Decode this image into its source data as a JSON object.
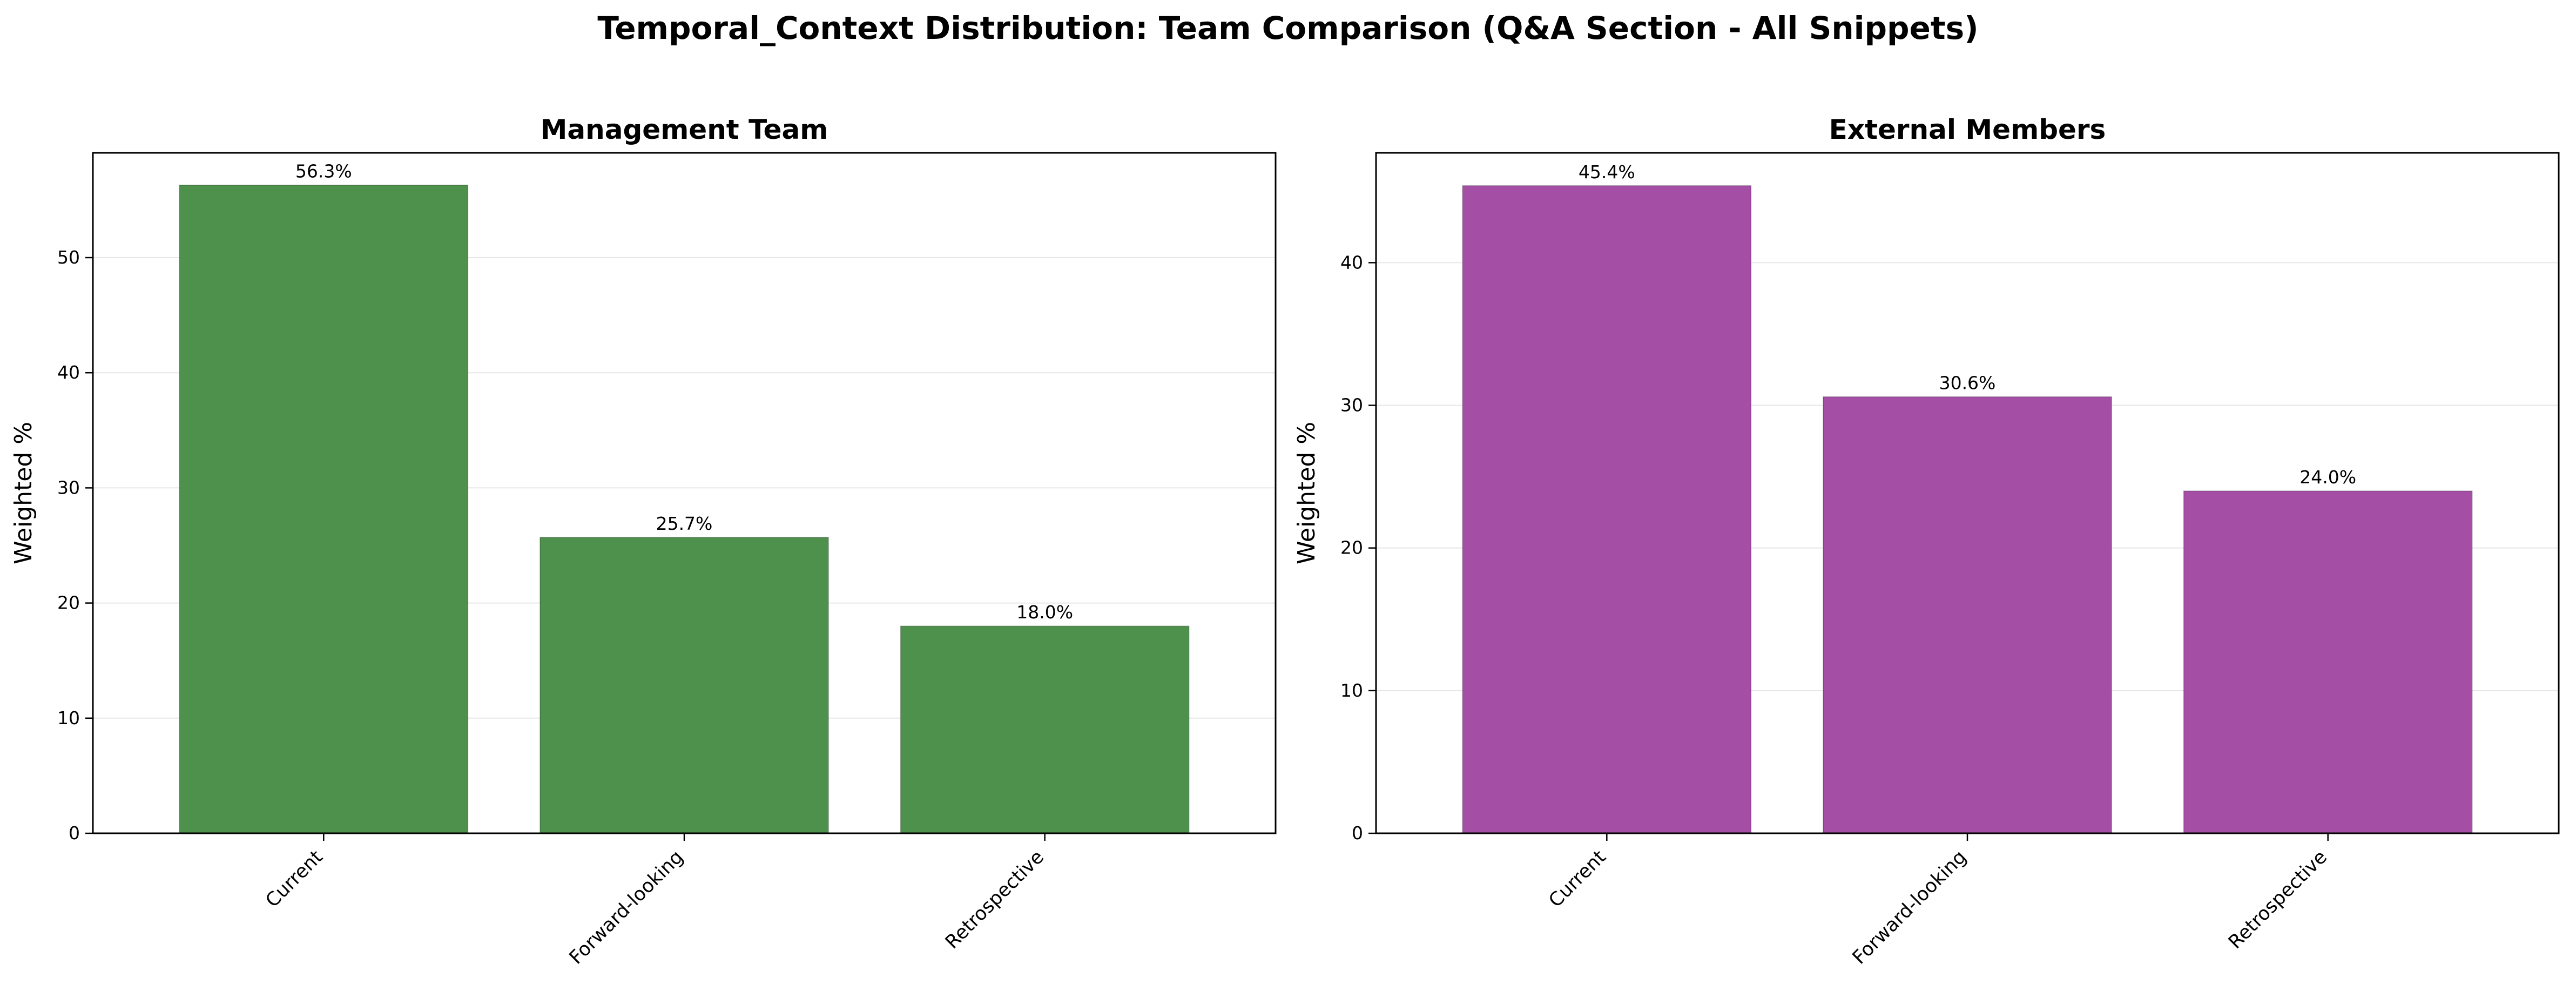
{
  "figure": {
    "title": "Temporal_Context Distribution: Team Comparison (Q&A Section - All Snippets)"
  },
  "chart_data": [
    {
      "type": "bar",
      "title": "Management Team",
      "xlabel": "",
      "ylabel": "Weighted %",
      "categories": [
        "Current",
        "Forward-looking",
        "Retrospective"
      ],
      "values": [
        56.3,
        25.7,
        18.0
      ],
      "data_labels": [
        "56.3%",
        "25.7%",
        "18.0%"
      ],
      "yticks": [
        0,
        10,
        20,
        30,
        40,
        50
      ],
      "ylim": [
        0,
        59.1
      ],
      "color": "#4d914d",
      "grid": "y"
    },
    {
      "type": "bar",
      "title": "External Members",
      "xlabel": "",
      "ylabel": "Weighted %",
      "categories": [
        "Current",
        "Forward-looking",
        "Retrospective"
      ],
      "values": [
        45.4,
        30.6,
        24.0
      ],
      "data_labels": [
        "45.4%",
        "30.6%",
        "24.0%"
      ],
      "yticks": [
        0,
        10,
        20,
        30,
        40
      ],
      "ylim": [
        0,
        47.7
      ],
      "color": "#a54ea5",
      "grid": "y"
    }
  ]
}
